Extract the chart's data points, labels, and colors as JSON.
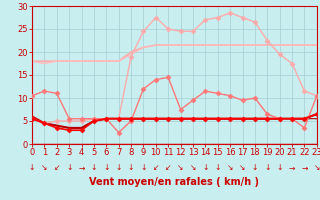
{
  "background_color": "#c8eef0",
  "grid_color": "#aad4d8",
  "xlabel": "Vent moyen/en rafales ( km/h )",
  "xlabel_color": "#cc0000",
  "xlabel_fontsize": 7,
  "tick_color": "#cc0000",
  "tick_fontsize": 6,
  "ylim": [
    0,
    30
  ],
  "xlim": [
    0,
    23
  ],
  "yticks": [
    0,
    5,
    10,
    15,
    20,
    25,
    30
  ],
  "xticks": [
    0,
    1,
    2,
    3,
    4,
    5,
    6,
    7,
    8,
    9,
    10,
    11,
    12,
    13,
    14,
    15,
    16,
    17,
    18,
    19,
    20,
    21,
    22,
    23
  ],
  "series": [
    {
      "y": [
        18.0,
        18.0,
        18.0,
        18.0,
        18.0,
        18.0,
        18.0,
        18.0,
        20.0,
        21.0,
        21.5,
        21.5,
        21.5,
        21.5,
        21.5,
        21.5,
        21.5,
        21.5,
        21.5,
        21.5,
        21.5,
        21.5,
        21.5,
        21.5
      ],
      "color": "#ffaaaa",
      "linewidth": 1.2,
      "marker": null
    },
    {
      "y": [
        18.0,
        17.5,
        18.0,
        18.0,
        18.0,
        18.0,
        18.0,
        18.0,
        19.5,
        21.0,
        21.5,
        21.5,
        21.5,
        21.5,
        21.5,
        21.5,
        21.5,
        21.5,
        21.5,
        21.5,
        21.5,
        21.5,
        21.5,
        21.5
      ],
      "color": "#ffbbbb",
      "linewidth": 1.0,
      "marker": null
    },
    {
      "y": [
        5.5,
        4.5,
        5.0,
        5.0,
        5.0,
        5.5,
        5.5,
        5.5,
        19.0,
        24.5,
        27.5,
        25.0,
        24.5,
        24.5,
        27.0,
        27.5,
        28.5,
        27.5,
        26.5,
        22.5,
        19.5,
        17.5,
        11.5,
        10.5
      ],
      "color": "#ffaaaa",
      "linewidth": 1.0,
      "marker": "D",
      "markersize": 2.5
    },
    {
      "y": [
        10.5,
        11.5,
        11.0,
        5.5,
        5.5,
        5.5,
        5.5,
        2.5,
        5.0,
        12.0,
        14.0,
        14.5,
        7.5,
        9.5,
        11.5,
        11.0,
        10.5,
        9.5,
        10.0,
        6.5,
        5.5,
        5.5,
        3.5,
        10.5
      ],
      "color": "#ff7777",
      "linewidth": 1.0,
      "marker": "D",
      "markersize": 2.5
    },
    {
      "y": [
        6.0,
        4.5,
        4.0,
        3.5,
        3.5,
        5.0,
        5.5,
        5.5,
        5.5,
        5.5,
        5.5,
        5.5,
        5.5,
        5.5,
        5.5,
        5.5,
        5.5,
        5.5,
        5.5,
        5.5,
        5.5,
        5.5,
        5.5,
        6.5
      ],
      "color": "#cc0000",
      "linewidth": 1.5,
      "marker": null
    },
    {
      "y": [
        5.5,
        4.5,
        3.5,
        3.0,
        3.0,
        5.0,
        5.5,
        5.5,
        5.5,
        5.5,
        5.5,
        5.5,
        5.5,
        5.5,
        5.5,
        5.5,
        5.5,
        5.5,
        5.5,
        5.5,
        5.5,
        5.5,
        5.5,
        6.5
      ],
      "color": "#ff0000",
      "linewidth": 1.2,
      "marker": "D",
      "markersize": 2.5
    },
    {
      "y": [
        5.5,
        4.5,
        4.0,
        3.5,
        3.5,
        5.0,
        5.5,
        5.5,
        5.5,
        5.5,
        5.5,
        5.5,
        5.5,
        5.5,
        5.5,
        5.5,
        5.5,
        5.5,
        5.5,
        5.5,
        5.5,
        5.5,
        5.5,
        5.5
      ],
      "color": "#aa0000",
      "linewidth": 0.8,
      "marker": null
    }
  ],
  "arrow_chars": [
    "↓",
    "↘",
    "↙",
    "↓",
    "→",
    "↓",
    "↓",
    "↓",
    "↓",
    "↓",
    "↙",
    "↙",
    "↘",
    "↘",
    "↓",
    "↓",
    "↘",
    "↘",
    "↓",
    "↓",
    "↓",
    "→",
    "→",
    "↘"
  ]
}
